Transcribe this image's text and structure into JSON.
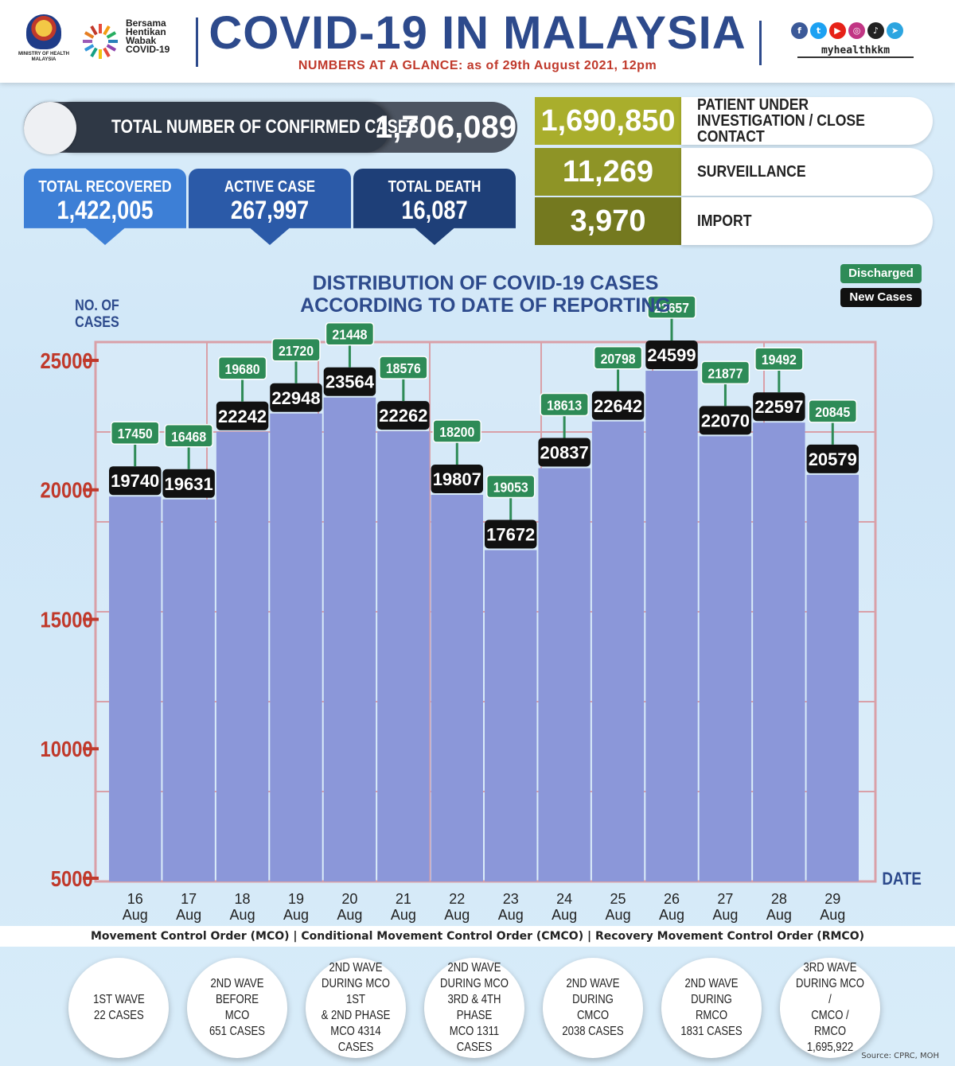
{
  "header": {
    "moh_text": "MINISTRY OF HEALTH MALAYSIA",
    "campaign": [
      "Bersama",
      "Hentikan",
      "Wabak",
      "COVID-19"
    ],
    "title": "COVID-19 IN MALAYSIA",
    "subtitle": "NUMBERS AT A GLANCE: as of 29th August 2021, 12pm",
    "social_handle": "myhealthkkm",
    "social_icons": [
      "facebook-icon",
      "twitter-icon",
      "youtube-icon",
      "instagram-icon",
      "tiktok-icon",
      "telegram-icon"
    ],
    "social_colors": [
      "#3b5998",
      "#1da1f2",
      "#e62117",
      "#c13584",
      "#222222",
      "#2ca5e0"
    ]
  },
  "summary": {
    "confirmed_label": "TOTAL NUMBER OF CONFIRMED CASES",
    "confirmed_value": "1,706,089",
    "cards": [
      {
        "label": "TOTAL RECOVERED",
        "value": "1,422,005",
        "color": "#3d7fd6"
      },
      {
        "label": "ACTIVE CASE",
        "value": "267,997",
        "color": "#2b5aa8"
      },
      {
        "label": "TOTAL DEATH",
        "value": "16,087",
        "color": "#1e3f78"
      }
    ],
    "sources": [
      {
        "value": "1,690,850",
        "label": "PATIENT UNDER INVESTIGATION / CLOSE CONTACT",
        "color": "#a9ae2c"
      },
      {
        "value": "11,269",
        "label": "SURVEILLANCE",
        "color": "#8e9426"
      },
      {
        "value": "3,970",
        "label": "IMPORT",
        "color": "#74791f"
      }
    ]
  },
  "chart_data": {
    "type": "bar",
    "title": "DISTRIBUTION OF COVID-19 CASES ACCORDING TO DATE OF REPORTING",
    "ylabel": "NO. OF CASES",
    "xlabel": "DATE",
    "ylim": [
      5000,
      26000
    ],
    "yticks": [
      5000,
      10000,
      15000,
      20000,
      25000
    ],
    "categories": [
      [
        "16",
        "Aug"
      ],
      [
        "17",
        "Aug"
      ],
      [
        "18",
        "Aug"
      ],
      [
        "19",
        "Aug"
      ],
      [
        "20",
        "Aug"
      ],
      [
        "21",
        "Aug"
      ],
      [
        "22",
        "Aug"
      ],
      [
        "23",
        "Aug"
      ],
      [
        "24",
        "Aug"
      ],
      [
        "25",
        "Aug"
      ],
      [
        "26",
        "Aug"
      ],
      [
        "27",
        "Aug"
      ],
      [
        "28",
        "Aug"
      ],
      [
        "29",
        "Aug"
      ]
    ],
    "series": [
      {
        "name": "New Cases",
        "color": "#111111",
        "values": [
          19740,
          19631,
          22242,
          22948,
          23564,
          22262,
          19807,
          17672,
          20837,
          22642,
          24599,
          22070,
          22597,
          20579
        ]
      },
      {
        "name": "Discharged",
        "color": "#2e8b57",
        "values": [
          17450,
          16468,
          19680,
          21720,
          21448,
          18576,
          18200,
          19053,
          18613,
          20798,
          22657,
          21877,
          19492,
          20845
        ]
      }
    ],
    "bar_color": "#8b97d9",
    "grid": true,
    "legend": "top-right"
  },
  "footer": {
    "band": "Movement Control Order (MCO) | Conditional Movement Control Order (CMCO) | Recovery Movement Control Order (RMCO)",
    "waves": [
      "1ST WAVE\n22 CASES",
      "2ND WAVE\nBEFORE MCO\n651 CASES",
      "2ND WAVE\nDURING MCO 1ST\n& 2ND PHASE\nMCO 4314\nCASES",
      "2ND WAVE\nDURING MCO\n3RD & 4TH PHASE\nMCO 1311\nCASES",
      "2ND WAVE\nDURING CMCO\n2038 CASES",
      "2ND WAVE\nDURING RMCO\n1831 CASES",
      "3RD WAVE\nDURING MCO /\nCMCO / RMCO\n1,695,922"
    ],
    "source": "Source: CPRC, MOH"
  }
}
